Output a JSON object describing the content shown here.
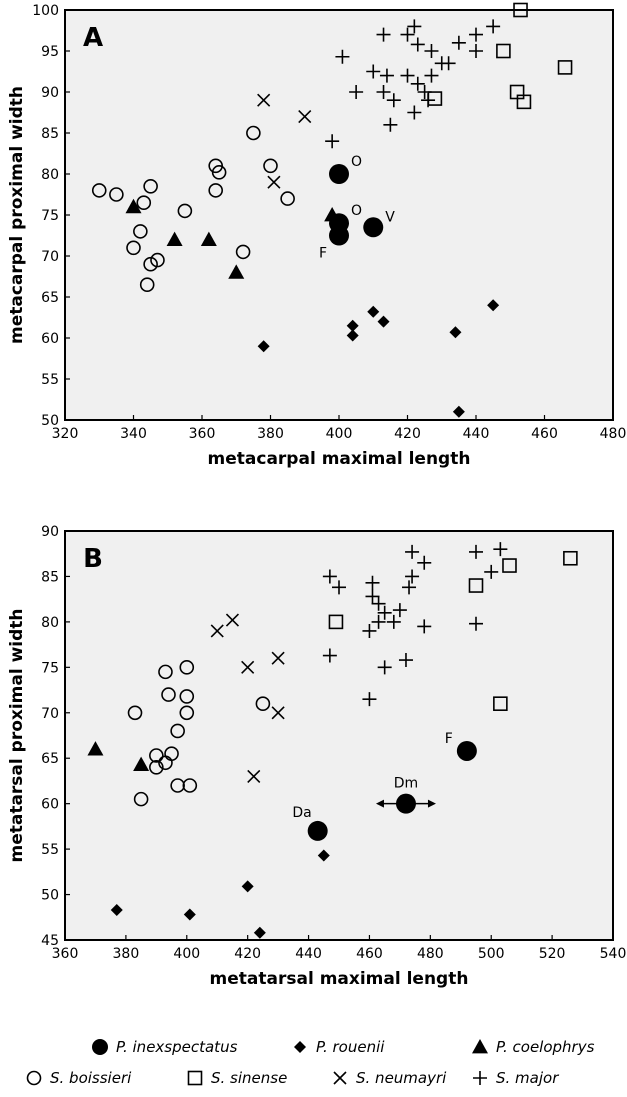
{
  "chart_data": [
    {
      "type": "scatter",
      "panel_label": "A",
      "xlabel": "metacarpal maximal length",
      "ylabel": "metacarpal proximal width",
      "xlim": [
        320,
        480
      ],
      "ylim": [
        50,
        100
      ],
      "xticks": [
        "320",
        "340",
        "360",
        "380",
        "400",
        "420",
        "440",
        "460",
        "480"
      ],
      "yticks": [
        "50",
        "55",
        "60",
        "65",
        "70",
        "75",
        "80",
        "85",
        "90",
        "95",
        "100"
      ],
      "grid": false,
      "series": [
        {
          "name": "P. inexspectatus",
          "marker": "filled-circle-large",
          "points": [
            [
              400,
              80
            ],
            [
              400,
              74
            ],
            [
              400,
              72.5
            ],
            [
              410,
              73.5
            ]
          ]
        },
        {
          "name": "P. rouenii",
          "marker": "filled-diamond",
          "points": [
            [
              378,
              59
            ],
            [
              404,
              61.5
            ],
            [
              404,
              60.3
            ],
            [
              410,
              63.2
            ],
            [
              413,
              62
            ],
            [
              434,
              60.7
            ],
            [
              435,
              51
            ],
            [
              445,
              64
            ]
          ]
        },
        {
          "name": "P. coelophrys",
          "marker": "filled-triangle",
          "points": [
            [
              340,
              76
            ],
            [
              352,
              72
            ],
            [
              362,
              72
            ],
            [
              370,
              68
            ],
            [
              398,
              75
            ]
          ]
        },
        {
          "name": "S. boissieri",
          "marker": "open-circle",
          "points": [
            [
              330,
              78
            ],
            [
              335,
              77.5
            ],
            [
              340,
              71
            ],
            [
              342,
              73
            ],
            [
              343,
              76.5
            ],
            [
              344,
              66.5
            ],
            [
              345,
              69
            ],
            [
              345,
              78.5
            ],
            [
              347,
              69.5
            ],
            [
              355,
              75.5
            ],
            [
              364,
              78
            ],
            [
              364,
              81
            ],
            [
              365,
              80.2
            ],
            [
              372,
              70.5
            ],
            [
              375,
              85
            ],
            [
              380,
              81
            ],
            [
              385,
              77
            ]
          ]
        },
        {
          "name": "S. sinense",
          "marker": "open-square",
          "points": [
            [
              428,
              89.2
            ],
            [
              448,
              95
            ],
            [
              452,
              90
            ],
            [
              453,
              100
            ],
            [
              454,
              88.8
            ],
            [
              466,
              93
            ]
          ]
        },
        {
          "name": "S. neumayri",
          "marker": "cross",
          "points": [
            [
              378,
              89
            ],
            [
              381,
              79
            ],
            [
              390,
              87
            ]
          ]
        },
        {
          "name": "S. major",
          "marker": "plus",
          "points": [
            [
              398,
              84
            ],
            [
              401,
              94.3
            ],
            [
              405,
              90
            ],
            [
              410,
              92.5
            ],
            [
              413,
              97
            ],
            [
              413,
              90
            ],
            [
              414,
              92
            ],
            [
              415,
              86
            ],
            [
              416,
              89
            ],
            [
              420,
              97
            ],
            [
              420,
              92
            ],
            [
              422,
              87.5
            ],
            [
              422,
              98
            ],
            [
              423,
              91
            ],
            [
              423,
              95.8
            ],
            [
              425,
              90
            ],
            [
              426,
              89
            ],
            [
              427,
              92
            ],
            [
              427,
              95
            ],
            [
              430,
              93.5
            ],
            [
              432,
              93.5
            ],
            [
              435,
              96
            ],
            [
              440,
              95
            ],
            [
              440,
              97
            ],
            [
              445,
              98
            ]
          ]
        }
      ],
      "annotations": [
        {
          "text": "O",
          "x": 400,
          "y": 80
        },
        {
          "text": "O",
          "x": 400,
          "y": 74
        },
        {
          "text": "F",
          "x": 400,
          "y": 72.5
        },
        {
          "text": "V",
          "x": 410,
          "y": 73.5
        }
      ]
    },
    {
      "type": "scatter",
      "panel_label": "B",
      "xlabel": "metatarsal maximal length",
      "ylabel": "metatarsal proximal width",
      "xlim": [
        360,
        540
      ],
      "ylim": [
        45,
        90
      ],
      "xticks": [
        "360",
        "380",
        "400",
        "420",
        "440",
        "460",
        "480",
        "500",
        "520",
        "540"
      ],
      "yticks": [
        "45",
        "50",
        "55",
        "60",
        "65",
        "70",
        "75",
        "80",
        "85",
        "90"
      ],
      "grid": false,
      "series": [
        {
          "name": "P. inexspectatus",
          "marker": "filled-circle-large",
          "points": [
            [
              443,
              57
            ],
            [
              472,
              60
            ],
            [
              492,
              65.8
            ]
          ]
        },
        {
          "name": "P. rouenii",
          "marker": "filled-diamond",
          "points": [
            [
              377,
              48.3
            ],
            [
              401,
              47.8
            ],
            [
              420,
              50.9
            ],
            [
              424,
              45.8
            ],
            [
              445,
              54.3
            ]
          ]
        },
        {
          "name": "P. coelophrys",
          "marker": "filled-triangle",
          "points": [
            [
              370,
              66
            ],
            [
              385,
              64.3
            ]
          ]
        },
        {
          "name": "S. boissieri",
          "marker": "open-circle",
          "points": [
            [
              383,
              70
            ],
            [
              385,
              60.5
            ],
            [
              390,
              64
            ],
            [
              390,
              65.3
            ],
            [
              393,
              74.5
            ],
            [
              393,
              64.5
            ],
            [
              394,
              72
            ],
            [
              395,
              65.5
            ],
            [
              397,
              68
            ],
            [
              397,
              62
            ],
            [
              400,
              75
            ],
            [
              400,
              71.8
            ],
            [
              400,
              70
            ],
            [
              401,
              62
            ],
            [
              425,
              71
            ]
          ]
        },
        {
          "name": "S. sinense",
          "marker": "open-square",
          "points": [
            [
              449,
              80
            ],
            [
              495,
              84
            ],
            [
              503,
              71
            ],
            [
              506,
              86.2
            ],
            [
              526,
              87
            ]
          ]
        },
        {
          "name": "S. neumayri",
          "marker": "cross",
          "points": [
            [
              410,
              79
            ],
            [
              415,
              80.2
            ],
            [
              420,
              75
            ],
            [
              422,
              63
            ],
            [
              430,
              76
            ],
            [
              430,
              70
            ]
          ]
        },
        {
          "name": "S. major",
          "marker": "plus",
          "points": [
            [
              447,
              85
            ],
            [
              447,
              76.3
            ],
            [
              450,
              83.8
            ],
            [
              460,
              71.5
            ],
            [
              460,
              79
            ],
            [
              461,
              82.8
            ],
            [
              461,
              84.3
            ],
            [
              463,
              80
            ],
            [
              463,
              82
            ],
            [
              465,
              75
            ],
            [
              465,
              81
            ],
            [
              468,
              80
            ],
            [
              470,
              81.3
            ],
            [
              472,
              75.8
            ],
            [
              473,
              83.8
            ],
            [
              474,
              87.7
            ],
            [
              474,
              85
            ],
            [
              478,
              79.5
            ],
            [
              478,
              86.5
            ],
            [
              495,
              87.7
            ],
            [
              495,
              79.8
            ],
            [
              500,
              85.5
            ],
            [
              503,
              88
            ]
          ]
        }
      ],
      "annotations": [
        {
          "text": "Da",
          "x": 443,
          "y": 57
        },
        {
          "text": "Dm",
          "x": 472,
          "y": 60
        },
        {
          "text": "F",
          "x": 492,
          "y": 65.8
        }
      ]
    }
  ],
  "legend": {
    "placement": "bottom",
    "rows": [
      [
        {
          "name": "P. inexspectatus",
          "marker": "filled-circle"
        },
        {
          "name": "P. rouenii",
          "marker": "filled-diamond"
        },
        {
          "name": "P. coelophrys",
          "marker": "filled-triangle"
        }
      ],
      [
        {
          "name": "S. boissieri",
          "marker": "open-circle"
        },
        {
          "name": "S. sinense",
          "marker": "open-square"
        },
        {
          "name": "S. neumayri",
          "marker": "cross"
        },
        {
          "name": "S. major",
          "marker": "plus"
        }
      ]
    ]
  },
  "colors": {
    "plot_background": "#f0f0f0",
    "marker": "#000000"
  }
}
